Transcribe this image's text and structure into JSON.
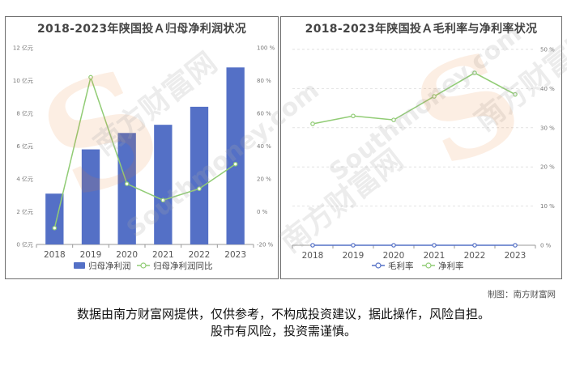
{
  "watermark": {
    "brand": "南方财富网",
    "site": "Southmoney.com",
    "logo": "S"
  },
  "chart_data": [
    {
      "type": "bar",
      "title": "2018-2023年陕国投Ａ归母净利润状况",
      "categories": [
        "2018",
        "2019",
        "2020",
        "2021",
        "2022",
        "2023"
      ],
      "series": [
        {
          "name": "归母净利润",
          "kind": "bar",
          "axis": "left",
          "color": "#5470c6",
          "values": [
            3.1,
            5.8,
            6.8,
            7.3,
            8.4,
            10.8
          ]
        },
        {
          "name": "归母净利润同比",
          "kind": "line",
          "axis": "right",
          "color": "#91cc75",
          "values": [
            -10,
            82,
            17,
            7,
            14,
            29
          ]
        }
      ],
      "y_left": {
        "min": 0,
        "max": 12,
        "step": 2,
        "ticks": [
          "0 亿元",
          "2 亿元",
          "4 亿元",
          "6 亿元",
          "8 亿元",
          "10 亿元",
          "12 亿元"
        ]
      },
      "y_right": {
        "min": -20,
        "max": 100,
        "step": 20,
        "ticks": [
          "-20 %",
          "0 %",
          "20 %",
          "40 %",
          "60 %",
          "80 %",
          "100 %"
        ]
      },
      "grid": false,
      "legend_position": "bottom"
    },
    {
      "type": "line",
      "title": "2018-2023年陕国投Ａ毛利率与净利率状况",
      "categories": [
        "2018",
        "2019",
        "2020",
        "2021",
        "2022",
        "2023"
      ],
      "series": [
        {
          "name": "毛利率",
          "color": "#5470c6",
          "values": [
            0,
            0,
            0,
            0,
            0,
            0
          ]
        },
        {
          "name": "净利率",
          "color": "#91cc75",
          "values": [
            31,
            33,
            32,
            38,
            44,
            38.5
          ]
        }
      ],
      "y_right": {
        "min": 0,
        "max": 50,
        "step": 10,
        "ticks": [
          "0 %",
          "10 %",
          "20 %",
          "30 %",
          "40 %",
          "50 %"
        ]
      },
      "grid": true,
      "legend_position": "bottom"
    }
  ],
  "footer": {
    "credit": "制图：南方财富网",
    "disclaimer_line1": "数据由南方财富网提供，仅供参考，不构成投资建议，据此操作，风险自担。",
    "disclaimer_line2": "股市有风险，投资需谨慎。"
  }
}
